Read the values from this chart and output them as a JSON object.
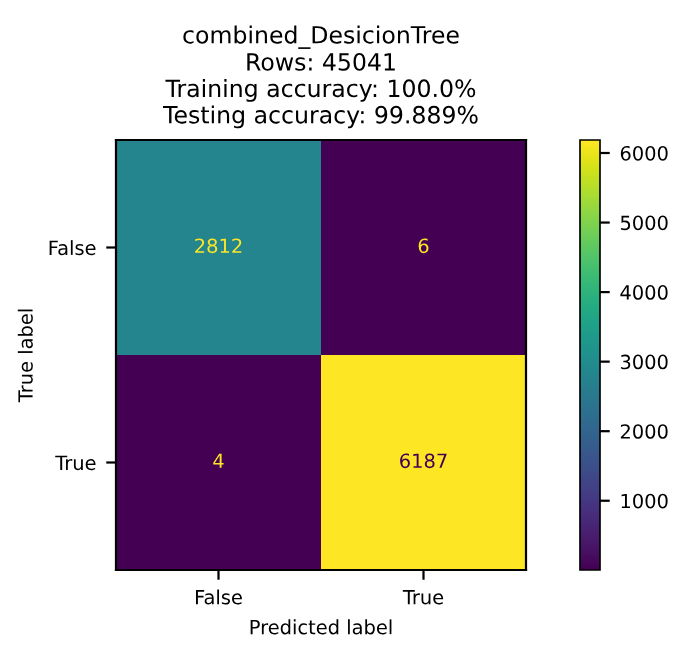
{
  "chart_data": {
    "type": "heatmap",
    "title": "combined_DesicionTree\nRows: 45041\nTraining accuracy: 100.0%\nTesting accuracy: 99.889%",
    "xlabel": "Predicted label",
    "ylabel": "True label",
    "categories": [
      "False",
      "True"
    ],
    "y_categories": [
      "False",
      "True"
    ],
    "cells": [
      [
        2812,
        6
      ],
      [
        4,
        6187
      ]
    ],
    "clim": [
      4,
      6187
    ],
    "cticks": [
      1000,
      2000,
      3000,
      4000,
      5000,
      6000
    ],
    "data_labels": true,
    "grid": false
  }
}
